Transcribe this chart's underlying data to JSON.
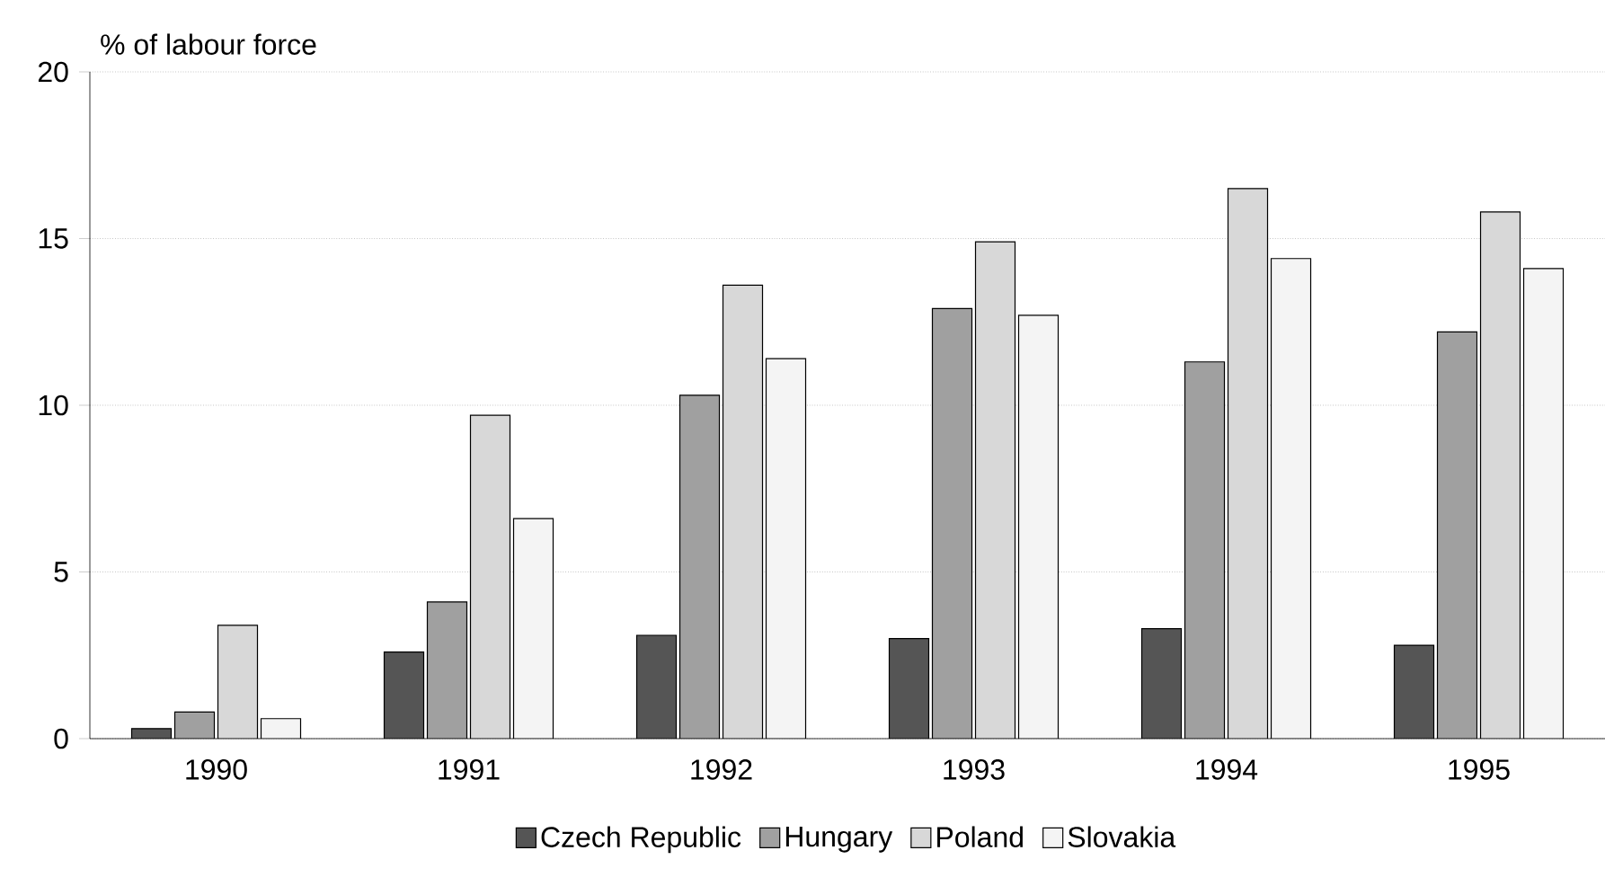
{
  "chart_data": {
    "type": "bar",
    "ylabel": "% of labour force",
    "categories": [
      "1990",
      "1991",
      "1992",
      "1993",
      "1994",
      "1995"
    ],
    "series": [
      {
        "name": "Czech Republic",
        "color": "#555555",
        "values": [
          0.3,
          2.6,
          3.1,
          3.0,
          3.3,
          2.8
        ]
      },
      {
        "name": "Hungary",
        "color": "#a0a0a0",
        "values": [
          0.8,
          4.1,
          10.3,
          12.9,
          11.3,
          12.2
        ]
      },
      {
        "name": "Poland",
        "color": "#d8d8d8",
        "values": [
          3.4,
          9.7,
          13.6,
          14.9,
          16.5,
          15.8
        ]
      },
      {
        "name": "Slovakia",
        "color": "#f4f4f4",
        "values": [
          0.6,
          6.6,
          11.4,
          12.7,
          14.4,
          14.1
        ]
      }
    ],
    "ylim": [
      0,
      20
    ],
    "yticks": [
      0,
      5,
      10,
      15,
      20
    ],
    "grid": "y",
    "legend": "bottom"
  }
}
